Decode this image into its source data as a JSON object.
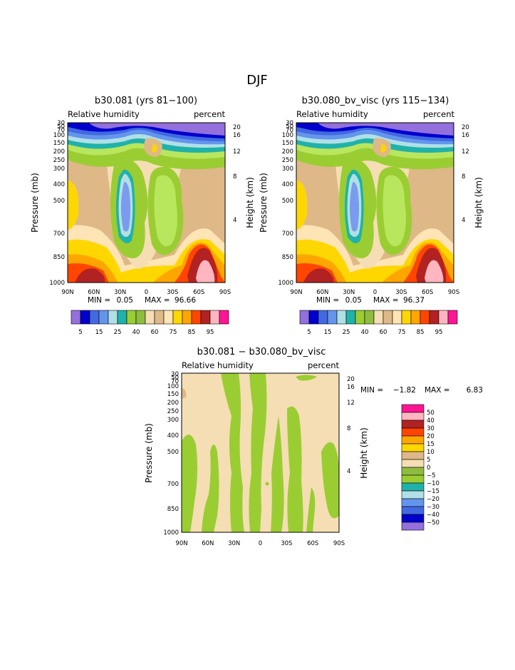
{
  "page_title": "DJF",
  "colors": {
    "absolute_scale": [
      "#9370db",
      "#0000cd",
      "#4169e1",
      "#6495ed",
      "#b0e0e6",
      "#20b2aa",
      "#9acd32",
      "#8fbc3f",
      "#f5deb3",
      "#deb887",
      "#ffe4b5",
      "#ffd700",
      "#ffa500",
      "#ff4500",
      "#b22222",
      "#ffb6c1",
      "#ff1493"
    ],
    "diff_scale": [
      "#9370db",
      "#0000cd",
      "#4169e1",
      "#6495ed",
      "#b0e0e6",
      "#20b2aa",
      "#9acd32",
      "#8fbc3f",
      "#f5deb3",
      "#deb887",
      "#ffd700",
      "#ffa500",
      "#ff4500",
      "#b22222",
      "#ffb6c1",
      "#ff1493"
    ]
  },
  "chart_data": [
    {
      "type": "contour",
      "title": "b30.081 (yrs 81−100)",
      "variable": "Relative humidity",
      "units": "percent",
      "ylabel": "Pressure (mb)",
      "y2label": "Height (km)",
      "x_ticks": [
        "90N",
        "60N",
        "30N",
        "0",
        "30S",
        "60S",
        "90S"
      ],
      "y_ticks": [
        "1000",
        "850",
        "700",
        "500",
        "400",
        "300",
        "250",
        "200",
        "150",
        "100",
        "70",
        "50",
        "30"
      ],
      "y2_ticks": [
        "4",
        "8",
        "12",
        "16",
        "20"
      ],
      "min_label": "MIN =",
      "min_value": "0.05",
      "max_label": "MAX =",
      "max_value": "96.66",
      "colorbar_labels": [
        "5",
        "15",
        "25",
        "40",
        "60",
        "75",
        "85",
        "95"
      ]
    },
    {
      "type": "contour",
      "title": "b30.080_bv_visc (yrs 115−134)",
      "variable": "Relative humidity",
      "units": "percent",
      "ylabel": "Pressure (mb)",
      "y2label": "Height (km)",
      "x_ticks": [
        "90N",
        "60N",
        "30N",
        "0",
        "30S",
        "60S",
        "90S"
      ],
      "y_ticks": [
        "1000",
        "850",
        "700",
        "500",
        "400",
        "300",
        "250",
        "200",
        "150",
        "100",
        "70",
        "50",
        "30"
      ],
      "y2_ticks": [
        "4",
        "8",
        "12",
        "16",
        "20"
      ],
      "min_label": "MIN =",
      "min_value": "0.05",
      "max_label": "MAX =",
      "max_value": "96.37",
      "colorbar_labels": [
        "5",
        "15",
        "25",
        "40",
        "60",
        "75",
        "85",
        "95"
      ]
    },
    {
      "type": "contour",
      "title": "b30.081 − b30.080_bv_visc",
      "variable": "Relative humidity",
      "units": "percent",
      "ylabel": "Pressure (mb)",
      "y2label": "Height (km)",
      "x_ticks": [
        "90N",
        "60N",
        "30N",
        "0",
        "30S",
        "60S",
        "90S"
      ],
      "y_ticks": [
        "1000",
        "850",
        "700",
        "500",
        "400",
        "300",
        "250",
        "200",
        "150",
        "100",
        "70",
        "50",
        "30"
      ],
      "y2_ticks": [
        "4",
        "8",
        "12",
        "16",
        "20"
      ],
      "min_label": "MIN =",
      "min_value": "−1.82",
      "max_label": "MAX =",
      "max_value": "6.83",
      "colorbar_labels": [
        "50",
        "40",
        "30",
        "20",
        "15",
        "10",
        "5",
        "0",
        "−5",
        "−10",
        "−15",
        "−20",
        "−30",
        "−40",
        "−50"
      ]
    }
  ]
}
